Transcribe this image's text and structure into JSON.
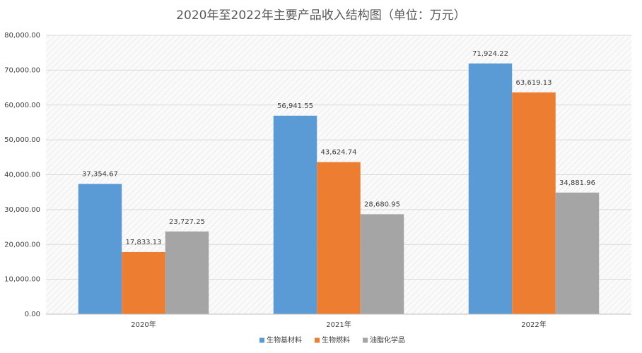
{
  "chart_data": {
    "type": "bar",
    "title": "2020年至2022年主要产品收入结构图（单位：万元）",
    "categories": [
      "2020年",
      "2021年",
      "2022年"
    ],
    "series": [
      {
        "name": "生物基材料",
        "color": "#5b9bd5",
        "values": [
          37354.67,
          56941.55,
          71924.22
        ],
        "value_labels": [
          "37,354.67",
          "56,941.55",
          "71,924.22"
        ]
      },
      {
        "name": "生物燃料",
        "color": "#ed7d31",
        "values": [
          17833.13,
          43624.74,
          63619.13
        ],
        "value_labels": [
          "17,833.13",
          "43,624.74",
          "63,619.13"
        ]
      },
      {
        "name": "油脂化学品",
        "color": "#a5a5a5",
        "values": [
          23727.25,
          28680.95,
          34881.96
        ],
        "value_labels": [
          "23,727.25",
          "28,680.95",
          "34,881.96"
        ]
      }
    ],
    "ylim": [
      0,
      80000
    ],
    "yticks": [
      {
        "value": 0,
        "label": "0.00"
      },
      {
        "value": 10000,
        "label": "10,000.00"
      },
      {
        "value": 20000,
        "label": "20,000.00"
      },
      {
        "value": 30000,
        "label": "30,000.00"
      },
      {
        "value": 40000,
        "label": "40,000.00"
      },
      {
        "value": 50000,
        "label": "50,000.00"
      },
      {
        "value": 60000,
        "label": "60,000.00"
      },
      {
        "value": 70000,
        "label": "70,000.00"
      },
      {
        "value": 80000,
        "label": "80,000.00"
      }
    ],
    "grid": true,
    "legend": "bottom"
  }
}
